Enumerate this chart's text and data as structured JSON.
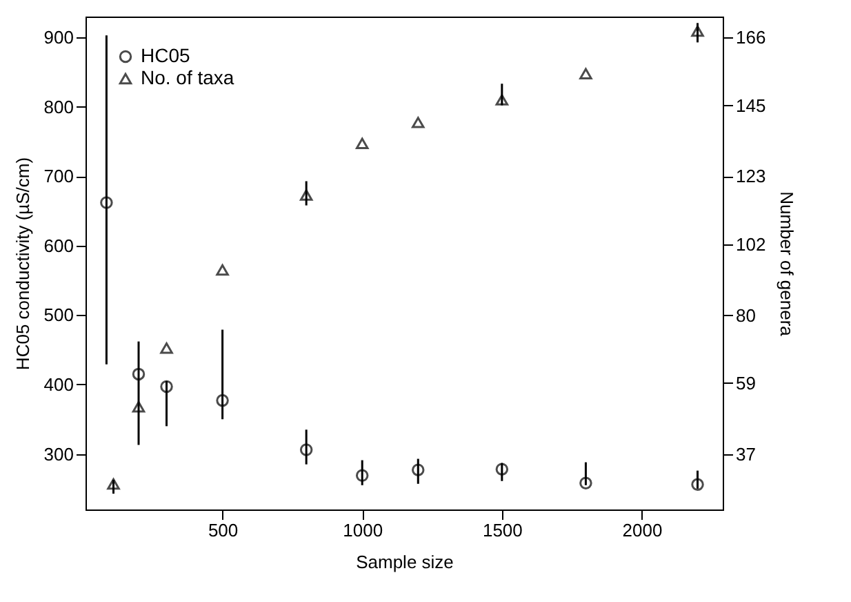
{
  "chart_data": {
    "type": "scatter",
    "xlabel": "Sample size",
    "ylabel": "HC05  conductivity (µS/cm)",
    "y2label": "Number of genera",
    "xlim": [
      10,
      2290
    ],
    "xticks": [
      500,
      1000,
      1500,
      2000
    ],
    "ylim": [
      220,
      930
    ],
    "yticks": [
      300,
      400,
      500,
      600,
      700,
      800,
      900
    ],
    "y2lim": [
      19.8,
      172.5
    ],
    "y2ticks": [
      37,
      59,
      80,
      102,
      123,
      145,
      166
    ],
    "legend": "top left",
    "grid": false,
    "series": [
      {
        "name": "HC05",
        "color": "#000000",
        "marker": "circle",
        "x": [
          85,
          200,
          300,
          500,
          800,
          1000,
          1200,
          1500,
          1800,
          2200
        ],
        "values": [
          662,
          415,
          397,
          377,
          306,
          269,
          277,
          278,
          258,
          256
        ],
        "errors": [
          [
            429,
            903
          ],
          [
            313,
            462
          ],
          [
            340,
            405
          ],
          [
            350,
            479
          ],
          [
            285,
            335
          ],
          [
            255,
            291
          ],
          [
            257,
            293
          ],
          [
            261,
            287
          ],
          [
            255,
            288
          ],
          [
            250,
            276
          ]
        ]
      },
      {
        "name": "No. of taxa",
        "color": "#000000",
        "marker": "triangle",
        "axis": "y2",
        "x": [
          110,
          200,
          300,
          500,
          800,
          1000,
          1200,
          1500,
          1800,
          2200
        ],
        "values": [
          27.7,
          51.6,
          69.8,
          94.0,
          117.2,
          133.2,
          139.7,
          146.7,
          154.8,
          168
        ],
        "errors": [
          [
            24.7,
            29
          ],
          null,
          null,
          null,
          [
            114,
            121.5
          ],
          null,
          null,
          [
            145,
            151.7
          ],
          null,
          [
            164.5,
            170.5
          ]
        ]
      }
    ]
  }
}
